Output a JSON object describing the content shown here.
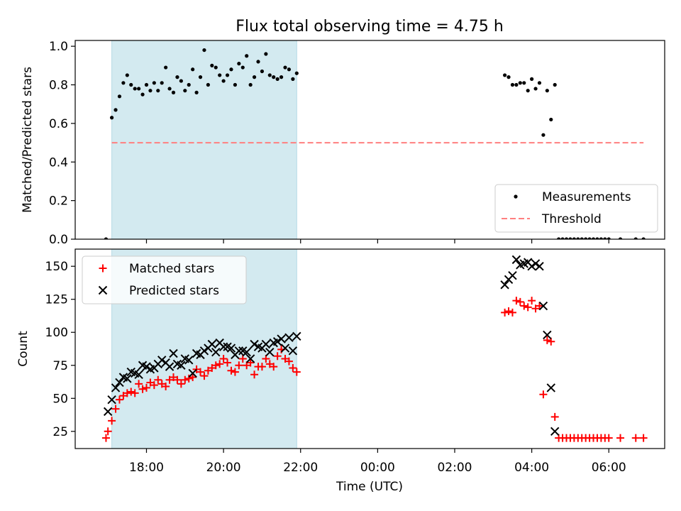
{
  "figure": {
    "title": "Flux total observing time = 4.75 h",
    "xlabel": "Time (UTC)",
    "xtick_labels": [
      "18:00",
      "20:00",
      "22:00",
      "00:00",
      "02:00",
      "04:00",
      "06:00"
    ]
  },
  "colors": {
    "span": "#d3eaf0",
    "measurement": "#000000",
    "threshold": "#ff7f7f",
    "matched": "#ff0000",
    "predicted": "#000000"
  },
  "chart_data": [
    {
      "type": "scatter",
      "ylabel": "Matched/Predicted stars",
      "ylim": [
        0,
        1.03
      ],
      "yticks": [
        0.0,
        0.2,
        0.4,
        0.6,
        0.8,
        1.0
      ],
      "ytick_labels": [
        "0.0",
        "0.2",
        "0.4",
        "0.6",
        "0.8",
        "1.0"
      ],
      "xlim_hours": [
        16.15,
        31.45
      ],
      "observing_span_hours": [
        17.1,
        21.9
      ],
      "threshold": {
        "value": 0.5,
        "x_hours": [
          17.1,
          30.9
        ]
      },
      "legend": {
        "position": "lower right",
        "entries": [
          "Measurements",
          "Threshold"
        ]
      },
      "series": [
        {
          "name": "Measurements",
          "x_hours": [
            16.95,
            17.1,
            17.2,
            17.3,
            17.4,
            17.5,
            17.6,
            17.7,
            17.8,
            17.9,
            18.0,
            18.1,
            18.2,
            18.3,
            18.4,
            18.5,
            18.6,
            18.7,
            18.8,
            18.9,
            19.0,
            19.1,
            19.2,
            19.3,
            19.4,
            19.5,
            19.6,
            19.7,
            19.8,
            19.9,
            20.0,
            20.1,
            20.2,
            20.3,
            20.4,
            20.5,
            20.6,
            20.7,
            20.8,
            20.9,
            21.0,
            21.1,
            21.2,
            21.3,
            21.4,
            21.5,
            21.6,
            21.7,
            21.8,
            21.9,
            27.3,
            27.4,
            27.5,
            27.6,
            27.7,
            27.8,
            27.9,
            28.0,
            28.1,
            28.2,
            28.3,
            28.4,
            28.5,
            28.6,
            28.7,
            28.8,
            28.9,
            29.0,
            29.1,
            29.2,
            29.3,
            29.4,
            29.5,
            29.6,
            29.7,
            29.8,
            29.9,
            30.0,
            30.3,
            30.7,
            30.9
          ],
          "y": [
            0.0,
            0.63,
            0.67,
            0.74,
            0.81,
            0.85,
            0.8,
            0.78,
            0.78,
            0.75,
            0.8,
            0.77,
            0.81,
            0.77,
            0.81,
            0.89,
            0.78,
            0.76,
            0.84,
            0.82,
            0.77,
            0.8,
            0.88,
            0.76,
            0.84,
            0.98,
            0.8,
            0.9,
            0.89,
            0.85,
            0.82,
            0.85,
            0.88,
            0.8,
            0.91,
            0.89,
            0.95,
            0.8,
            0.84,
            0.92,
            0.87,
            0.96,
            0.85,
            0.84,
            0.83,
            0.84,
            0.89,
            0.88,
            0.83,
            0.86,
            0.85,
            0.84,
            0.8,
            0.8,
            0.81,
            0.81,
            0.77,
            0.83,
            0.78,
            0.81,
            0.54,
            0.77,
            0.62,
            0.8,
            0.0,
            0.0,
            0.0,
            0.0,
            0.0,
            0.0,
            0.0,
            0.0,
            0.0,
            0.0,
            0.0,
            0.0,
            0.0,
            0.0,
            0.0,
            0.0,
            0.0
          ]
        }
      ]
    },
    {
      "type": "scatter",
      "ylabel": "Count",
      "ylim": [
        12,
        163
      ],
      "yticks": [
        25,
        50,
        75,
        100,
        125,
        150
      ],
      "ytick_labels": [
        "25",
        "50",
        "75",
        "100",
        "125",
        "150"
      ],
      "xlim_hours": [
        16.15,
        31.45
      ],
      "observing_span_hours": [
        17.1,
        21.9
      ],
      "legend": {
        "position": "upper left",
        "entries": [
          "Matched stars",
          "Predicted stars"
        ]
      },
      "series": [
        {
          "name": "Matched stars",
          "marker": "plus",
          "x_hours": [
            16.95,
            17.0,
            17.1,
            17.2,
            17.3,
            17.4,
            17.5,
            17.6,
            17.7,
            17.8,
            17.9,
            18.0,
            18.1,
            18.2,
            18.3,
            18.4,
            18.5,
            18.6,
            18.7,
            18.8,
            18.9,
            19.0,
            19.1,
            19.2,
            19.3,
            19.4,
            19.5,
            19.6,
            19.7,
            19.8,
            19.9,
            20.0,
            20.1,
            20.2,
            20.3,
            20.4,
            20.5,
            20.6,
            20.7,
            20.8,
            20.9,
            21.0,
            21.1,
            21.2,
            21.3,
            21.4,
            21.5,
            21.6,
            21.7,
            21.8,
            21.9,
            27.3,
            27.4,
            27.5,
            27.6,
            27.7,
            27.8,
            27.9,
            28.0,
            28.1,
            28.2,
            28.3,
            28.4,
            28.5,
            28.6,
            28.7,
            28.8,
            28.9,
            29.0,
            29.1,
            29.2,
            29.3,
            29.4,
            29.5,
            29.6,
            29.7,
            29.8,
            29.9,
            30.0,
            30.3,
            30.7,
            30.9
          ],
          "y": [
            20,
            25,
            33,
            42,
            49,
            52,
            54,
            55,
            54,
            61,
            57,
            58,
            62,
            60,
            64,
            61,
            59,
            64,
            66,
            64,
            61,
            64,
            65,
            66,
            72,
            70,
            67,
            71,
            73,
            75,
            76,
            80,
            77,
            71,
            70,
            75,
            80,
            75,
            77,
            68,
            74,
            74,
            80,
            76,
            74,
            82,
            87,
            80,
            78,
            73,
            70,
            115,
            116,
            115,
            124,
            123,
            120,
            119,
            124,
            118,
            120,
            53,
            94,
            93,
            36,
            20,
            20,
            20,
            20,
            20,
            20,
            20,
            20,
            20,
            20,
            20,
            20,
            20,
            20,
            20,
            20,
            20
          ]
        },
        {
          "name": "Predicted stars",
          "marker": "x",
          "x_hours": [
            17.0,
            17.1,
            17.2,
            17.3,
            17.4,
            17.5,
            17.6,
            17.7,
            17.8,
            17.9,
            18.0,
            18.1,
            18.2,
            18.3,
            18.4,
            18.5,
            18.6,
            18.7,
            18.8,
            18.9,
            19.0,
            19.1,
            19.2,
            19.3,
            19.4,
            19.5,
            19.6,
            19.7,
            19.8,
            19.9,
            20.0,
            20.1,
            20.2,
            20.3,
            20.4,
            20.5,
            20.6,
            20.7,
            20.8,
            20.9,
            21.0,
            21.1,
            21.2,
            21.3,
            21.4,
            21.5,
            21.6,
            21.7,
            21.8,
            21.9,
            27.3,
            27.4,
            27.5,
            27.6,
            27.7,
            27.8,
            27.9,
            28.0,
            28.1,
            28.2,
            28.3,
            28.4,
            28.5,
            28.6
          ],
          "y": [
            40,
            49,
            58,
            62,
            66,
            65,
            70,
            69,
            68,
            75,
            74,
            72,
            73,
            76,
            79,
            77,
            74,
            84,
            76,
            75,
            80,
            79,
            69,
            84,
            83,
            86,
            88,
            91,
            85,
            92,
            89,
            89,
            88,
            83,
            86,
            86,
            85,
            80,
            91,
            89,
            88,
            91,
            85,
            92,
            93,
            95,
            88,
            96,
            86,
            97,
            136,
            140,
            143,
            155,
            151,
            152,
            153,
            150,
            152,
            150,
            120,
            98,
            58,
            25
          ]
        }
      ]
    }
  ]
}
